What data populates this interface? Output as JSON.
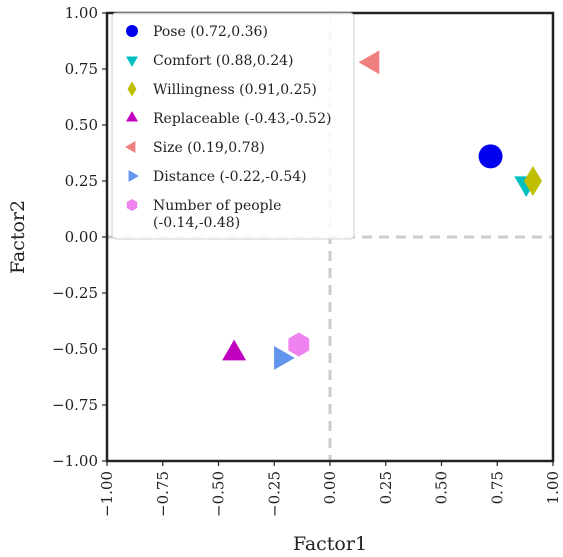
{
  "chart_data": {
    "type": "scatter",
    "xlabel": "Factor1",
    "ylabel": "Factor2",
    "xlim": [
      -1.0,
      1.0
    ],
    "ylim": [
      -1.0,
      1.0
    ],
    "xticks": [
      "−1.00",
      "−0.75",
      "−0.50",
      "−0.25",
      "0.00",
      "0.25",
      "0.50",
      "0.75",
      "1.00"
    ],
    "yticks": [
      "−1.00",
      "−0.75",
      "−0.50",
      "−0.25",
      "0.00",
      "0.25",
      "0.50",
      "0.75",
      "1.00"
    ],
    "reference_lines": {
      "x": 0,
      "y": 0,
      "style": "dashed",
      "color": "#cccccc"
    },
    "legend_position": "upper-left",
    "grid": false,
    "series": [
      {
        "name": "Pose (0.72,0.36)",
        "x": 0.72,
        "y": 0.36,
        "marker": "circle",
        "color": "#0000ee"
      },
      {
        "name": "Comfort (0.88,0.24)",
        "x": 0.88,
        "y": 0.24,
        "marker": "triangle-down",
        "color": "#00bfbf"
      },
      {
        "name": "Willingness (0.91,0.25)",
        "x": 0.91,
        "y": 0.25,
        "marker": "diamond",
        "color": "#bfbf00"
      },
      {
        "name": "Replaceable (-0.43,-0.52)",
        "x": -0.43,
        "y": -0.52,
        "marker": "triangle-up",
        "color": "#bf00bf"
      },
      {
        "name": "Size (0.19,0.78)",
        "x": 0.19,
        "y": 0.78,
        "marker": "triangle-left",
        "color": "#f08080"
      },
      {
        "name": "Distance (-0.22,-0.54)",
        "x": -0.22,
        "y": -0.54,
        "marker": "triangle-right",
        "color": "#6495ed"
      },
      {
        "name": "Number of people\n(-0.14,-0.48)",
        "x": -0.14,
        "y": -0.48,
        "marker": "hexagon",
        "color": "#ee82ee"
      }
    ]
  }
}
